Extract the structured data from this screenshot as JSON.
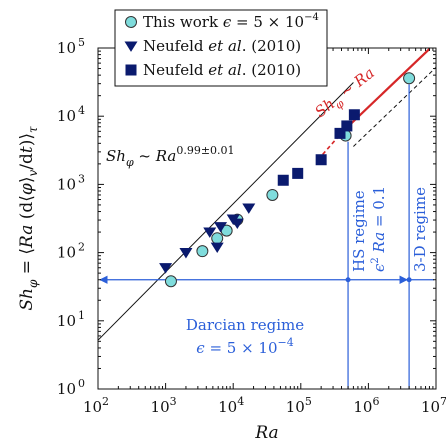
{
  "chart_data": {
    "type": "scatter",
    "xscale": "log",
    "yscale": "log",
    "xlim": [
      100,
      10000000
    ],
    "ylim": [
      1,
      100000
    ],
    "xlabel": "Ra",
    "ylabel": "Sh_φ = ⟨Ra (d⟨φ⟩_v/dt)⟩_τ",
    "xtick_labels": [
      "10^2",
      "10^3",
      "10^4",
      "10^5",
      "10^6",
      "10^7"
    ],
    "ytick_labels": [
      "10^0",
      "10^1",
      "10^2",
      "10^3",
      "10^4",
      "10^5"
    ],
    "grid": false,
    "legend_position": "top-center",
    "series": [
      {
        "name": "This work ϵ = 5 × 10⁻⁴",
        "marker": "circle",
        "color": "#7fdcdc",
        "edge_color": "#333333",
        "x": [
          1200,
          3500,
          5800,
          8000,
          11500,
          38000,
          460000,
          4000000
        ],
        "y": [
          38,
          105,
          162,
          210,
          305,
          700,
          5200,
          36000
        ]
      },
      {
        "name": "Neufeld et al. (2010)",
        "marker": "triangle-down",
        "color": "#0a1a6e",
        "x": [
          1000,
          2000,
          4500,
          5800,
          6500,
          10000,
          11500,
          17000
        ],
        "y": [
          60,
          100,
          200,
          120,
          240,
          310,
          270,
          450
        ]
      },
      {
        "name": "Neufeld et al. (2010)",
        "marker": "square",
        "color": "#0a1a6e",
        "x": [
          55000,
          90000,
          200000,
          380000,
          480000,
          620000
        ],
        "y": [
          1150,
          1450,
          2300,
          5600,
          7200,
          10500
        ]
      }
    ],
    "fit_lines": [
      {
        "name": "Sh_φ ~ Ra^0.99±0.01",
        "color": "#111111",
        "style": "solid",
        "x": [
          100,
          600000
        ],
        "y": [
          5.2,
          31200
        ]
      },
      {
        "name": "continuation",
        "color": "#111111",
        "style": "dashed",
        "x": [
          600000,
          10000000
        ],
        "y": [
          3600,
          52000
        ]
      },
      {
        "name": "Sh_φ ~ Ra",
        "color": "#d62728",
        "style": "solid",
        "x": [
          420000,
          8000000
        ],
        "y": [
          6000,
          97000
        ]
      },
      {
        "name": "",
        "color": "#d62728",
        "style": "dashed",
        "x": [
          180000,
          420000
        ],
        "y": [
          2300,
          6000
        ]
      }
    ],
    "annotations": {
      "fit_label": {
        "text": "Sh_φ ~ Ra^0.99±0.01",
        "base": "Sh",
        "sub": "φ",
        "middle": " ~ Ra",
        "sup": "0.99±0.01"
      },
      "red_label": {
        "text": "Sh_φ ~ Ra",
        "base": "Sh",
        "sub": "φ",
        "rest": " ~ Ra",
        "color": "#d62728"
      },
      "darcian": {
        "line1": "Darcian regime",
        "line2": "ϵ = 5 × 10⁻⁴",
        "color": "#2b5fd9"
      },
      "hs": {
        "line1": "HS regime",
        "line2": "ϵ² Ra = 0.1",
        "color": "#2b5fd9",
        "x": 500000
      },
      "three_d": {
        "text": "3-D regime",
        "color": "#2b5fd9",
        "x": 4000000
      },
      "arrow_y": 40
    }
  }
}
